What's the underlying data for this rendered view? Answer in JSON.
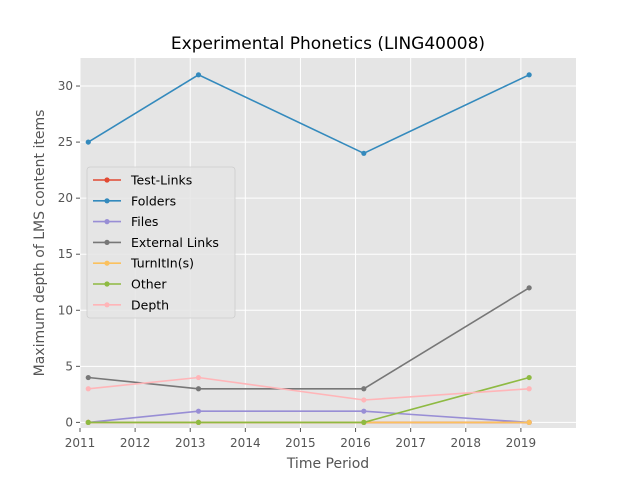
{
  "chart_data": {
    "type": "line",
    "title": "Experimental Phonetics (LING40008)",
    "xlabel": "Time Period",
    "ylabel": "Maximum depth of LMS content items",
    "xlim": [
      2011,
      2020
    ],
    "ylim": [
      -0.5,
      32.5
    ],
    "xticks": [
      2011,
      2012,
      2013,
      2014,
      2015,
      2016,
      2017,
      2018,
      2019
    ],
    "yticks": [
      0,
      5,
      10,
      15,
      20,
      25,
      30
    ],
    "grid": true,
    "legend_position": "center-left",
    "x": [
      2011.15,
      2013.15,
      2016.15,
      2019.15
    ],
    "series": [
      {
        "name": "Test-Links",
        "color": "#e24a33",
        "values": [
          0,
          0,
          0,
          0
        ]
      },
      {
        "name": "Folders",
        "color": "#348abd",
        "values": [
          25,
          31,
          24,
          31
        ]
      },
      {
        "name": "Files",
        "color": "#988ed5",
        "values": [
          0,
          1,
          1,
          0
        ]
      },
      {
        "name": "External Links",
        "color": "#777777",
        "values": [
          4,
          3,
          3,
          12
        ]
      },
      {
        "name": "TurnItIn(s)",
        "color": "#fbc15e",
        "values": [
          0,
          0,
          0,
          0
        ]
      },
      {
        "name": "Other",
        "color": "#8eba42",
        "values": [
          0,
          0,
          0,
          4
        ]
      },
      {
        "name": "Depth",
        "color": "#ffb5b8",
        "values": [
          3,
          4,
          2,
          3
        ]
      }
    ]
  }
}
